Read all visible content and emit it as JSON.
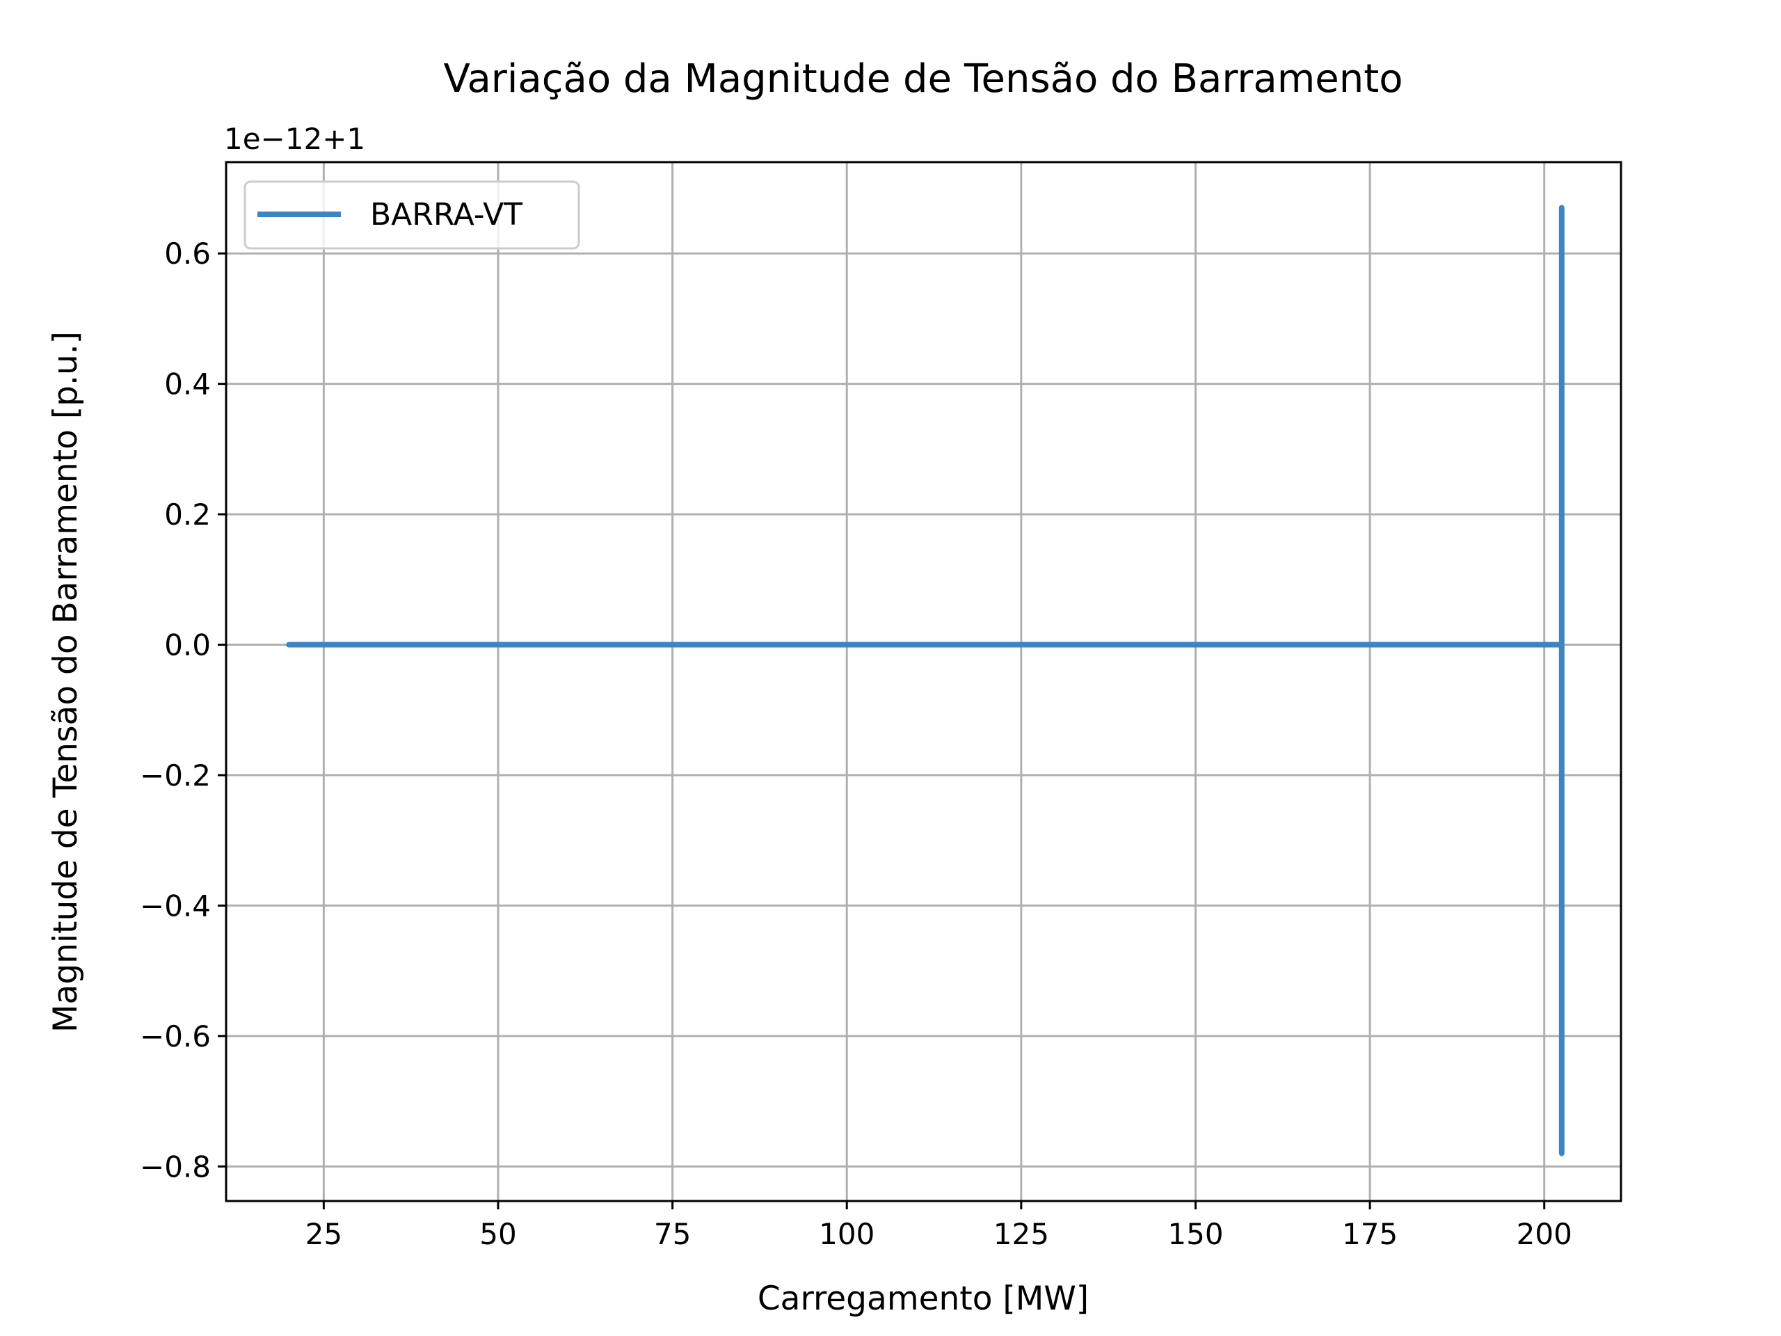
{
  "chart_data": {
    "type": "line",
    "title": "Variação da Magnitude de Tensão do Barramento",
    "xlabel": "Carregamento [MW]",
    "ylabel": "Magnitude de Tensão do Barramento [p.u.]",
    "offset_text": "1e−12+1",
    "xlim": [
      11,
      211
    ],
    "ylim": [
      -0.853,
      0.74
    ],
    "x_ticks": [
      25,
      50,
      75,
      100,
      125,
      150,
      175,
      200
    ],
    "x_tick_labels": [
      "25",
      "50",
      "75",
      "100",
      "125",
      "150",
      "175",
      "200"
    ],
    "y_ticks": [
      0.6,
      0.4,
      0.2,
      0.0,
      -0.2,
      -0.4,
      -0.6,
      -0.8
    ],
    "y_tick_labels": [
      "0.6",
      "0.4",
      "0.2",
      "0.0",
      "−0.2",
      "−0.4",
      "−0.6",
      "−0.8"
    ],
    "grid": true,
    "legend_position": "upper left",
    "series": [
      {
        "name": "BARRA-VT",
        "color": "#3d85c0",
        "x": [
          20,
          202.5,
          202.5,
          202.5
        ],
        "y": [
          0.0,
          0.0,
          0.67,
          -0.78
        ]
      }
    ]
  }
}
